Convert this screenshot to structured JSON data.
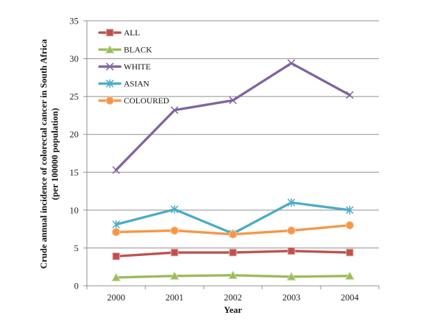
{
  "chart_data": {
    "type": "line",
    "title": "",
    "xlabel": "Year",
    "ylabel_lines": [
      "Crude annual incidence of colorectal cancer in South Africa",
      "(per 100000 population)"
    ],
    "ylim": [
      0,
      35
    ],
    "ytick_step": 5,
    "categories": [
      "2000",
      "2001",
      "2002",
      "2003",
      "2004"
    ],
    "grid": true,
    "legend_position": "top-left",
    "series": [
      {
        "name": "ALL",
        "color": "#c0504d",
        "marker": "square",
        "values": [
          3.9,
          4.4,
          4.4,
          4.6,
          4.4
        ]
      },
      {
        "name": "BLACK",
        "color": "#9bbb59",
        "marker": "triangle",
        "values": [
          1.1,
          1.3,
          1.4,
          1.2,
          1.3
        ]
      },
      {
        "name": "WHITE",
        "color": "#8064a2",
        "marker": "x",
        "values": [
          15.3,
          23.2,
          24.5,
          29.4,
          25.2
        ]
      },
      {
        "name": "ASIAN",
        "color": "#4bacc6",
        "marker": "star",
        "values": [
          8.1,
          10.1,
          6.9,
          11.0,
          10.0
        ]
      },
      {
        "name": "COLOURED",
        "color": "#f79646",
        "marker": "circle",
        "values": [
          7.1,
          7.3,
          6.8,
          7.3,
          8.0
        ]
      }
    ]
  }
}
